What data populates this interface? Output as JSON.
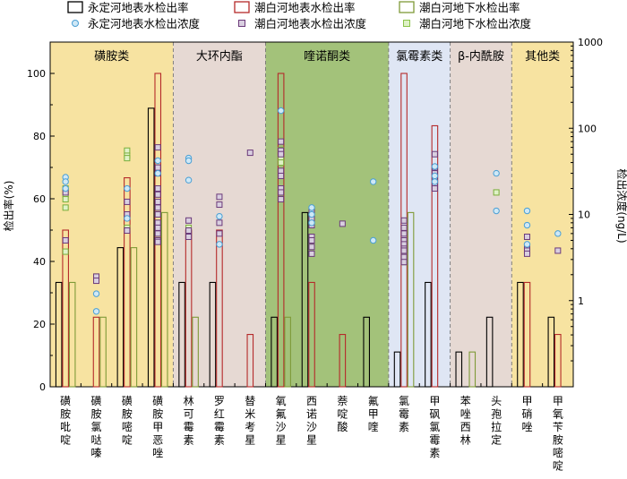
{
  "chart_data": {
    "type": "bar",
    "ylabel": "检出率(%)",
    "y2label": "检出浓度(ng/L)",
    "ylim": [
      0,
      110
    ],
    "yticks": [
      0,
      20,
      40,
      60,
      80,
      100
    ],
    "y2lim_log": [
      0.1,
      1000
    ],
    "y2ticks": [
      {
        "value": 1,
        "label": "1"
      },
      {
        "value": 10,
        "label": "10"
      },
      {
        "value": 100,
        "label": "100"
      },
      {
        "value": 1000,
        "label": "1000"
      }
    ],
    "legend": [
      {
        "key": "yd_rate",
        "label": "永定河地表水检出率",
        "kind": "bar",
        "color": "#000000"
      },
      {
        "key": "cb_rate",
        "label": "潮白河地表水检出率",
        "kind": "bar",
        "color": "#b52a2a"
      },
      {
        "key": "gw_rate",
        "label": "潮白河地下水检出率",
        "kind": "bar",
        "color": "#7f9a38"
      },
      {
        "key": "yd_conc",
        "label": "永定河地表水检出浓度",
        "kind": "circle",
        "color": "#4a9fd4"
      },
      {
        "key": "cb_conc",
        "label": "潮白河地表水检出浓度",
        "kind": "square",
        "color": "#6b3a7a"
      },
      {
        "key": "gw_conc",
        "label": "潮白河地下水检出浓度",
        "kind": "square",
        "color": "#8bc34a"
      }
    ],
    "groups": [
      {
        "name": "磺胺类",
        "color": "#f7e3a1",
        "items": [
          0,
          3
        ]
      },
      {
        "name": "大环内酯",
        "color": "#e6d9d3",
        "items": [
          4,
          6
        ]
      },
      {
        "name": "喹诺酮类",
        "color": "#a3c27a",
        "items": [
          7,
          10
        ]
      },
      {
        "name": "氯霉素类",
        "color": "#dfe6f4",
        "items": [
          11,
          12
        ]
      },
      {
        "name": "β-内酰胺",
        "color": "#e6d9d3",
        "items": [
          13,
          14
        ]
      },
      {
        "name": "其他类",
        "color": "#f7e3a1",
        "items": [
          15,
          16
        ]
      }
    ],
    "categories": [
      "磺胺吡啶",
      "磺胺氯哒嗪",
      "磺胺嘧啶",
      "磺胺甲恶唑",
      "林可霉素",
      "罗红霉素",
      "替米考星",
      "氧氟沙星",
      "西诺沙星",
      "萘啶酸",
      "氟甲喹",
      "氯霉素",
      "甲砜氯霉素",
      "苯唑西林",
      "头孢拉定",
      "甲硝唑",
      "甲氧苄胺嘧啶"
    ],
    "series": [
      {
        "name": "永定河地表水检出率",
        "values": [
          33.3,
          0,
          44.4,
          88.9,
          33.3,
          33.3,
          0,
          22.2,
          55.6,
          0,
          22.2,
          11.1,
          33.3,
          11.1,
          22.2,
          33.3,
          22.2
        ]
      },
      {
        "name": "潮白河地表水检出率",
        "values": [
          50,
          22.2,
          66.7,
          100,
          50,
          50,
          16.7,
          100,
          33.3,
          16.7,
          0,
          100,
          83.3,
          0,
          0,
          33.3,
          16.7
        ]
      },
      {
        "name": "潮白河地下水检出率",
        "values": [
          33.3,
          22.2,
          44.4,
          55.6,
          22.2,
          0,
          0,
          22.2,
          0,
          0,
          0,
          55.6,
          0,
          11.1,
          0,
          0,
          0
        ]
      }
    ],
    "concentrations": {
      "yd": [
        [
          27,
          24,
          20
        ],
        [
          1.2,
          0.75
        ],
        [
          20,
          9
        ],
        [
          42,
          30
        ],
        [
          45,
          42,
          25
        ],
        [
          9.5,
          4.5
        ],
        [],
        [
          160
        ],
        [
          12,
          10,
          8
        ],
        [],
        [
          24,
          5
        ],
        [],
        [
          36,
          28,
          24
        ],
        [],
        [
          30,
          11
        ],
        [
          11,
          7.5,
          4.5
        ],
        [
          6
        ]
      ],
      "cb": [
        [
          18,
          5
        ],
        [
          1.9,
          1.7
        ],
        [
          14,
          10,
          6.5
        ],
        [
          60,
          35,
          30,
          20,
          17,
          14,
          12,
          10,
          8,
          7,
          6,
          5,
          4.8
        ],
        [
          8.5,
          6.5,
          5.5
        ],
        [
          16,
          13,
          8,
          6
        ],
        [
          52
        ],
        [
          70,
          55,
          50,
          32,
          28,
          20,
          18,
          15
        ],
        [
          11,
          9,
          7.5,
          5.5,
          5,
          4.2,
          3.5
        ],
        [
          7.8
        ],
        [],
        [
          8.5,
          7,
          6,
          5,
          4.5,
          4,
          3.8,
          3.2,
          2.8
        ],
        [
          50,
          35,
          30,
          27,
          22,
          20
        ],
        [],
        [],
        [
          5.5,
          4.2,
          3.8,
          3.5
        ],
        [
          3.8
        ]
      ],
      "gw": [
        [
          20,
          17,
          15,
          12,
          3.7
        ],
        [
          1.9
        ],
        [
          55,
          48,
          45,
          7
        ],
        [
          12,
          10,
          8,
          7,
          6
        ],
        [
          7,
          6
        ],
        [],
        [],
        [
          56,
          45,
          40
        ],
        [],
        [],
        [],
        [
          3.5,
          3,
          2.8
        ],
        [],
        [],
        [
          18
        ],
        [],
        []
      ]
    }
  }
}
